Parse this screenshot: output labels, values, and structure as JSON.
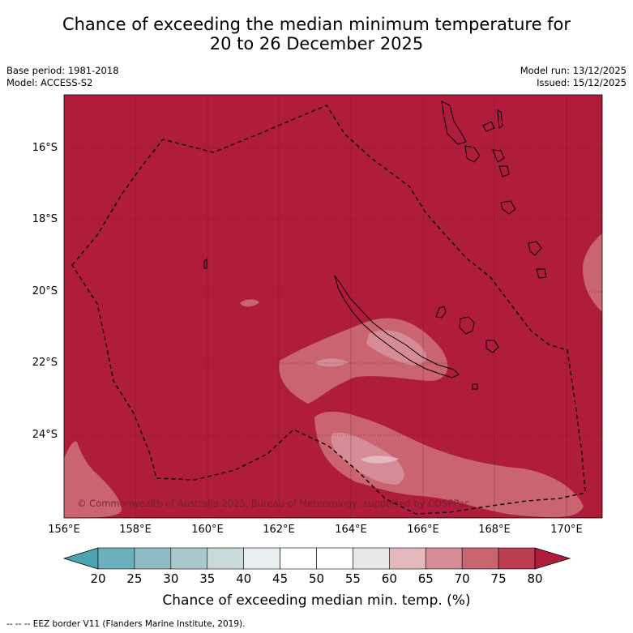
{
  "title_line1": "Chance of exceeding the median minimum temperature for",
  "title_line2": "20 to 26 December 2025",
  "meta_left": {
    "base_period": "Base period: 1981-2018",
    "model": "Model: ACCESS-S2"
  },
  "meta_right": {
    "model_run": "Model run: 13/12/2025",
    "issued": "Issued: 15/12/2025"
  },
  "lat_labels": [
    "16°S",
    "18°S",
    "20°S",
    "22°S",
    "24°S"
  ],
  "lon_labels": [
    "156°E",
    "158°E",
    "160°E",
    "162°E",
    "164°E",
    "166°E",
    "168°E",
    "170°E"
  ],
  "colorbar": {
    "ticks": [
      "20",
      "25",
      "30",
      "35",
      "40",
      "45",
      "50",
      "55",
      "60",
      "65",
      "70",
      "75",
      "80"
    ],
    "colors": [
      "#4ca3b2",
      "#6db0bd",
      "#8fbcc4",
      "#aac8cc",
      "#c9dadd",
      "#e8eff0",
      "#ffffff",
      "#ffffff",
      "#e8e8e8",
      "#e3b9be",
      "#d68c96",
      "#c96470",
      "#bc3f51",
      "#b01c3b"
    ],
    "title": "Chance of exceeding median min. temp. (%)"
  },
  "copyright": "© Commonwealth of Australia 2025, Bureau of Meteorology, supported by COSPPac",
  "footer": "--  --  -- EEZ border V11 (Flanders Marine Institute, 2019).",
  "legend_colors": {
    "background": "#b01c3b",
    "band70": "#c96470",
    "band65": "#d68c96",
    "band60": "#e3b9be"
  }
}
